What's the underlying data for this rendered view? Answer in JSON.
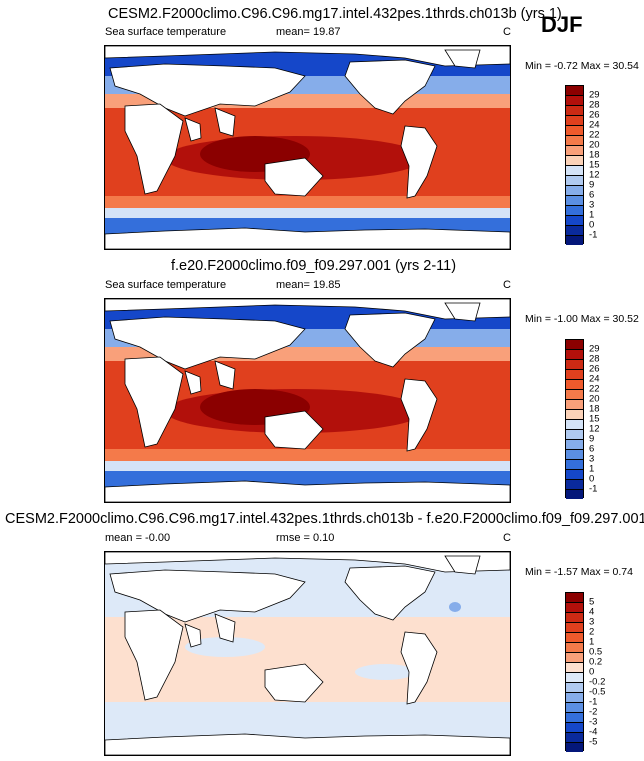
{
  "season": "DJF",
  "panels": [
    {
      "title": "CESM2.F2000climo.C96.C96.mg17.intel.432pes.1thrds.ch013b (yrs 1)",
      "left_label": "Sea surface temperature",
      "mid_label": "mean=  19.87",
      "units": "C",
      "minmax": "Min =  -0.72 Max =  30.54",
      "colorbar_labels": [
        "29",
        "28",
        "26",
        "24",
        "22",
        "20",
        "18",
        "15",
        "12",
        "9",
        "6",
        "3",
        "1",
        "0",
        "-1"
      ],
      "colorbar_colors": [
        "#8b0000",
        "#b2100b",
        "#cc2a14",
        "#e0401e",
        "#ef5a2c",
        "#f47a4a",
        "#f9a07a",
        "#fbd2b8",
        "#d4e3f7",
        "#b0caf0",
        "#86adea",
        "#5b8fe3",
        "#346fdb",
        "#1547c9",
        "#0a2a9c",
        "#04177a"
      ]
    },
    {
      "title": "f.e20.F2000climo.f09_f09.297.001 (yrs 2-11)",
      "left_label": "Sea surface temperature",
      "mid_label": "mean=  19.85",
      "units": "C",
      "minmax": "Min =  -1.00 Max =  30.52",
      "colorbar_labels": [
        "29",
        "28",
        "26",
        "24",
        "22",
        "20",
        "18",
        "15",
        "12",
        "9",
        "6",
        "3",
        "1",
        "0",
        "-1"
      ],
      "colorbar_colors": [
        "#8b0000",
        "#b2100b",
        "#cc2a14",
        "#e0401e",
        "#ef5a2c",
        "#f47a4a",
        "#f9a07a",
        "#fbd2b8",
        "#d4e3f7",
        "#b0caf0",
        "#86adea",
        "#5b8fe3",
        "#346fdb",
        "#1547c9",
        "#0a2a9c",
        "#04177a"
      ]
    },
    {
      "title": "CESM2.F2000climo.C96.C96.mg17.intel.432pes.1thrds.ch013b - f.e20.F2000climo.f09_f09.297.001",
      "left_label": "mean =  -0.00",
      "mid_label": "rmse =  0.10",
      "units": "C",
      "minmax": "Min =  -1.57 Max =   0.74",
      "colorbar_labels": [
        "5",
        "4",
        "3",
        "2",
        "1",
        "0.5",
        "0.2",
        "0",
        "-0.2",
        "-0.5",
        "-1",
        "-2",
        "-3",
        "-4",
        "-5"
      ],
      "colorbar_colors": [
        "#8b0000",
        "#b2100b",
        "#cc2a14",
        "#e0401e",
        "#ef5a2c",
        "#f47a4a",
        "#f9a07a",
        "#fde0cf",
        "#dde9f8",
        "#b0caf0",
        "#86adea",
        "#5b8fe3",
        "#346fdb",
        "#1547c9",
        "#0a2a9c",
        "#04177a"
      ]
    }
  ]
}
